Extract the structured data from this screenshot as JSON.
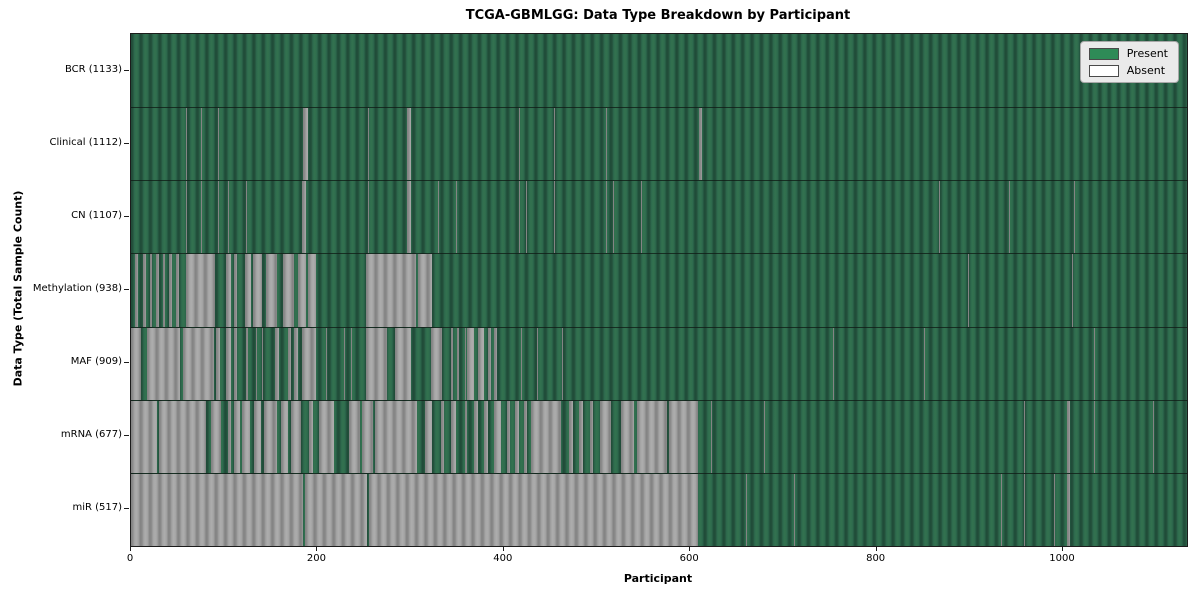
{
  "chart_data": {
    "type": "heatmap",
    "title": "TCGA-GBMLGG: Data Type Breakdown by Participant",
    "xlabel": "Participant",
    "ylabel": "Data Type (Total Sample Count)",
    "x_max": 1133,
    "x_ticks": [
      0,
      200,
      400,
      600,
      800,
      1000
    ],
    "grid": false,
    "legend_position": "upper right",
    "legend": [
      {
        "label": "Present",
        "color": "#2e8b57"
      },
      {
        "label": "Absent",
        "color": "#ffffff"
      }
    ],
    "rows": [
      {
        "key": "bcr",
        "label": "BCR (1133)",
        "total": 1133,
        "absent_ranges": []
      },
      {
        "key": "clinical",
        "label": "Clinical (1112)",
        "total": 1112,
        "absent_ranges": [
          [
            59,
            60
          ],
          [
            75,
            76
          ],
          [
            93,
            94
          ],
          [
            185,
            190
          ],
          [
            254,
            255
          ],
          [
            296,
            300
          ],
          [
            416,
            417
          ],
          [
            454,
            455
          ],
          [
            510,
            511
          ],
          [
            609,
            613
          ],
          [
            1007,
            1008
          ]
        ]
      },
      {
        "key": "cn",
        "label": "CN (1107)",
        "total": 1107,
        "absent_ranges": [
          [
            59,
            60
          ],
          [
            75,
            76
          ],
          [
            93,
            94
          ],
          [
            104,
            105
          ],
          [
            123,
            124
          ],
          [
            184,
            188
          ],
          [
            254,
            255
          ],
          [
            296,
            300
          ],
          [
            329,
            330
          ],
          [
            349,
            350
          ],
          [
            416,
            417
          ],
          [
            424,
            425
          ],
          [
            454,
            455
          ],
          [
            510,
            511
          ],
          [
            517,
            518
          ],
          [
            547,
            548
          ],
          [
            867,
            868
          ],
          [
            942,
            943
          ],
          [
            1012,
            1013
          ]
        ]
      },
      {
        "key": "methylation",
        "label": "Methylation (938)",
        "total": 938,
        "absent_ranges": [
          [
            4,
            8
          ],
          [
            13,
            16
          ],
          [
            20,
            23
          ],
          [
            27,
            30
          ],
          [
            34,
            37
          ],
          [
            41,
            44
          ],
          [
            48,
            52
          ],
          [
            59,
            90
          ],
          [
            102,
            107
          ],
          [
            111,
            114
          ],
          [
            122,
            129
          ],
          [
            131,
            141
          ],
          [
            145,
            157
          ],
          [
            163,
            175
          ],
          [
            179,
            188
          ],
          [
            190,
            199
          ],
          [
            252,
            306
          ],
          [
            308,
            323
          ],
          [
            898,
            899
          ],
          [
            1010,
            1011
          ]
        ]
      },
      {
        "key": "maf",
        "label": "MAF (909)",
        "total": 909,
        "absent_ranges": [
          [
            0,
            11
          ],
          [
            17,
            53
          ],
          [
            56,
            89
          ],
          [
            91,
            95
          ],
          [
            102,
            107
          ],
          [
            111,
            114
          ],
          [
            123,
            125
          ],
          [
            134,
            135
          ],
          [
            141,
            142
          ],
          [
            154,
            159
          ],
          [
            168,
            172
          ],
          [
            175,
            179
          ],
          [
            184,
            198
          ],
          [
            209,
            210
          ],
          [
            229,
            230
          ],
          [
            236,
            237
          ],
          [
            252,
            275
          ],
          [
            283,
            300
          ],
          [
            322,
            334
          ],
          [
            343,
            345
          ],
          [
            350,
            352
          ],
          [
            358,
            359
          ],
          [
            361,
            368
          ],
          [
            372,
            379
          ],
          [
            383,
            386
          ],
          [
            390,
            393
          ],
          [
            404,
            405
          ],
          [
            418,
            420
          ],
          [
            436,
            437
          ],
          [
            462,
            464
          ],
          [
            753,
            754
          ],
          [
            851,
            852
          ],
          [
            1033,
            1034
          ]
        ]
      },
      {
        "key": "mrna",
        "label": "mRNA (677)",
        "total": 677,
        "absent_ranges": [
          [
            0,
            28
          ],
          [
            30,
            81
          ],
          [
            86,
            97
          ],
          [
            104,
            107
          ],
          [
            111,
            117
          ],
          [
            119,
            128
          ],
          [
            132,
            139
          ],
          [
            143,
            157
          ],
          [
            161,
            168
          ],
          [
            172,
            182
          ],
          [
            191,
            195
          ],
          [
            202,
            218
          ],
          [
            234,
            246
          ],
          [
            248,
            260
          ],
          [
            262,
            307
          ],
          [
            315,
            323
          ],
          [
            333,
            336
          ],
          [
            343,
            349
          ],
          [
            358,
            361
          ],
          [
            368,
            372
          ],
          [
            379,
            383
          ],
          [
            390,
            397
          ],
          [
            403,
            407
          ],
          [
            412,
            416
          ],
          [
            422,
            425
          ],
          [
            429,
            461
          ],
          [
            470,
            474
          ],
          [
            481,
            485
          ],
          [
            492,
            496
          ],
          [
            503,
            515
          ],
          [
            526,
            540
          ],
          [
            543,
            575
          ],
          [
            577,
            608
          ],
          [
            622,
            623
          ],
          [
            679,
            680
          ],
          [
            904,
            905
          ],
          [
            958,
            959
          ],
          [
            1004,
            1008
          ],
          [
            1033,
            1034
          ],
          [
            1097,
            1098
          ]
        ]
      },
      {
        "key": "mir",
        "label": "miR (517)",
        "total": 517,
        "absent_ranges": [
          [
            0,
            185
          ],
          [
            187,
            253
          ],
          [
            255,
            608
          ],
          [
            660,
            661
          ],
          [
            711,
            712
          ],
          [
            933,
            934
          ],
          [
            958,
            959
          ],
          [
            990,
            991
          ],
          [
            1004,
            1007
          ]
        ]
      }
    ]
  }
}
